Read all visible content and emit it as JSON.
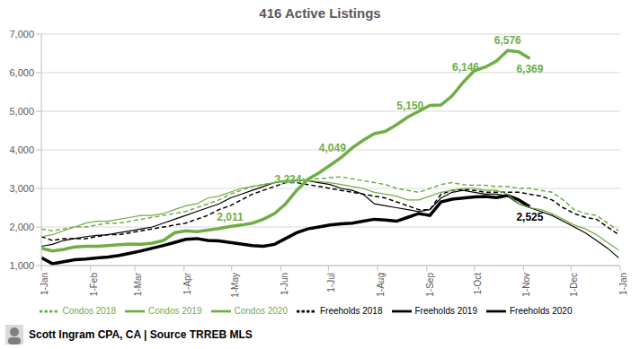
{
  "chart_data": {
    "type": "line",
    "title": "416 Active Listings",
    "footer": "Scott Ingram CPA, CA | Source TRREB MLS",
    "x": [
      0,
      7,
      14,
      21,
      28,
      35,
      42,
      49,
      56,
      63,
      70,
      77,
      84,
      91,
      98,
      105,
      112,
      119,
      126,
      133,
      140,
      147,
      154,
      161,
      168,
      175,
      182,
      189,
      196,
      203,
      210,
      217,
      224,
      231,
      238,
      245,
      252,
      259,
      266,
      273,
      280,
      287,
      294,
      301,
      308,
      315,
      322,
      329,
      336,
      343,
      350,
      357,
      364
    ],
    "xlim": [
      0,
      365
    ],
    "xticks": [
      {
        "value": 0,
        "label": "1-Jan"
      },
      {
        "value": 31,
        "label": "1-Feb"
      },
      {
        "value": 59,
        "label": "1-Mar"
      },
      {
        "value": 90,
        "label": "1-Apr"
      },
      {
        "value": 120,
        "label": "1-May"
      },
      {
        "value": 151,
        "label": "1-Jun"
      },
      {
        "value": 181,
        "label": "1-Jul"
      },
      {
        "value": 212,
        "label": "1-Aug"
      },
      {
        "value": 243,
        "label": "1-Sep"
      },
      {
        "value": 273,
        "label": "1-Oct"
      },
      {
        "value": 304,
        "label": "1-Nov"
      },
      {
        "value": 334,
        "label": "1-Dec"
      },
      {
        "value": 365,
        "label": "1-Jan"
      }
    ],
    "ylim": [
      1000,
      7000
    ],
    "yticks": [
      {
        "value": 1000,
        "label": "1,000"
      },
      {
        "value": 2000,
        "label": "2,000"
      },
      {
        "value": 3000,
        "label": "3,000"
      },
      {
        "value": 4000,
        "label": "4,000"
      },
      {
        "value": 5000,
        "label": "5,000"
      },
      {
        "value": 6000,
        "label": "6,000"
      },
      {
        "value": 7000,
        "label": "7,000"
      }
    ],
    "grid": true,
    "legend": "bottom",
    "series": [
      {
        "name": "Freeholds 2018",
        "color": "#000000",
        "line_style": "dashed",
        "values": [
          1750,
          1650,
          1700,
          1700,
          1700,
          1750,
          1800,
          1800,
          1850,
          1900,
          1950,
          2000,
          2050,
          2100,
          2200,
          2300,
          2450,
          2550,
          2700,
          2850,
          2950,
          3050,
          3150,
          3150,
          3100,
          3050,
          3000,
          2950,
          2900,
          2850,
          2800,
          2750,
          2650,
          2550,
          2450,
          2450,
          2850,
          2950,
          2980,
          2950,
          2900,
          2900,
          2900,
          2900,
          2850,
          2800,
          2700,
          2500,
          2350,
          2250,
          2200,
          2000,
          1800
        ]
      },
      {
        "name": "Freeholds 2019",
        "color": "#000000",
        "line_style": "solid",
        "values": [
          1500,
          1550,
          1650,
          1700,
          1750,
          1780,
          1800,
          1850,
          1900,
          1950,
          2000,
          2100,
          2200,
          2300,
          2400,
          2500,
          2600,
          2750,
          2850,
          2950,
          3050,
          3150,
          3200,
          3200,
          3200,
          3150,
          3100,
          3000,
          2950,
          2850,
          2600,
          2550,
          2500,
          2450,
          2400,
          2450,
          2750,
          2900,
          2950,
          2900,
          2850,
          2850,
          2800,
          2600,
          2500,
          2400,
          2300,
          2150,
          2000,
          1850,
          1650,
          1450,
          1200
        ]
      },
      {
        "name": "Freeholds 2020",
        "color": "#000000",
        "line_style": "bold",
        "values": [
          1200,
          1050,
          1100,
          1150,
          1170,
          1200,
          1220,
          1260,
          1320,
          1380,
          1450,
          1520,
          1600,
          1680,
          1700,
          1650,
          1640,
          1600,
          1560,
          1520,
          1500,
          1550,
          1700,
          1850,
          1950,
          2000,
          2050,
          2080,
          2100,
          2150,
          2200,
          2180,
          2150,
          2250,
          2350,
          2300,
          2650,
          2720,
          2750,
          2780,
          2790,
          2760,
          2820,
          2700,
          2525,
          null,
          null,
          null,
          null,
          null,
          null,
          null,
          null
        ]
      },
      {
        "name": "Condos 2018",
        "color": "#70ad47",
        "line_style": "dashed",
        "values": [
          1950,
          1900,
          1950,
          2000,
          2000,
          2050,
          2100,
          2100,
          2150,
          2200,
          2250,
          2300,
          2350,
          2400,
          2500,
          2600,
          2700,
          2850,
          2950,
          3050,
          3100,
          3150,
          3200,
          3200,
          3250,
          3250,
          3280,
          3300,
          3250,
          3200,
          3150,
          3100,
          3000,
          2950,
          2900,
          3000,
          3100,
          3150,
          3100,
          3080,
          3080,
          3050,
          3050,
          3000,
          3000,
          2950,
          2900,
          2700,
          2450,
          2350,
          2300,
          2100,
          1900
        ]
      },
      {
        "name": "Condos 2019",
        "color": "#70ad47",
        "line_style": "solid",
        "values": [
          1750,
          1800,
          1900,
          2000,
          2100,
          2150,
          2150,
          2200,
          2250,
          2300,
          2300,
          2350,
          2450,
          2550,
          2600,
          2750,
          2800,
          2900,
          3000,
          3050,
          3100,
          3150,
          3200,
          3200,
          3200,
          3180,
          3150,
          3100,
          3050,
          3000,
          2900,
          2850,
          2800,
          2700,
          2700,
          2800,
          2900,
          2950,
          3000,
          3000,
          2950,
          2950,
          2850,
          2600,
          2500,
          2450,
          2350,
          2200,
          2050,
          1950,
          1800,
          1600,
          1400
        ]
      },
      {
        "name": "Condos 2020",
        "color": "#70ad47",
        "line_style": "bold",
        "values": [
          1450,
          1380,
          1420,
          1480,
          1500,
          1500,
          1520,
          1540,
          1560,
          1550,
          1580,
          1650,
          1850,
          1900,
          1880,
          1920,
          1960,
          2011,
          2050,
          2100,
          2200,
          2350,
          2600,
          2950,
          3234,
          3400,
          3600,
          3800,
          4049,
          4250,
          4420,
          4480,
          4650,
          4850,
          5000,
          5150,
          5160,
          5400,
          5750,
          6050,
          6146,
          6300,
          6576,
          6540,
          6369,
          null,
          null,
          null,
          null,
          null,
          null,
          null,
          null
        ]
      }
    ],
    "annotations": [
      {
        "x": 119,
        "y": 2011,
        "text": "2,011",
        "series": "Condos 2020"
      },
      {
        "x": 168,
        "y": 3234,
        "text": "3,234",
        "series": "Condos 2020"
      },
      {
        "x": 196,
        "y": 4049,
        "text": "4,049",
        "series": "Condos 2020"
      },
      {
        "x": 245,
        "y": 5150,
        "text": "5,150",
        "series": "Condos 2020"
      },
      {
        "x": 280,
        "y": 6146,
        "text": "6,146",
        "series": "Condos 2020"
      },
      {
        "x": 294,
        "y": 6576,
        "text": "6,576",
        "series": "Condos 2020"
      },
      {
        "x": 308,
        "y": 6369,
        "text": "6,369",
        "series": "Condos 2020"
      },
      {
        "x": 308,
        "y": 2525,
        "text": "2,525",
        "series": "Freeholds 2020"
      }
    ]
  }
}
